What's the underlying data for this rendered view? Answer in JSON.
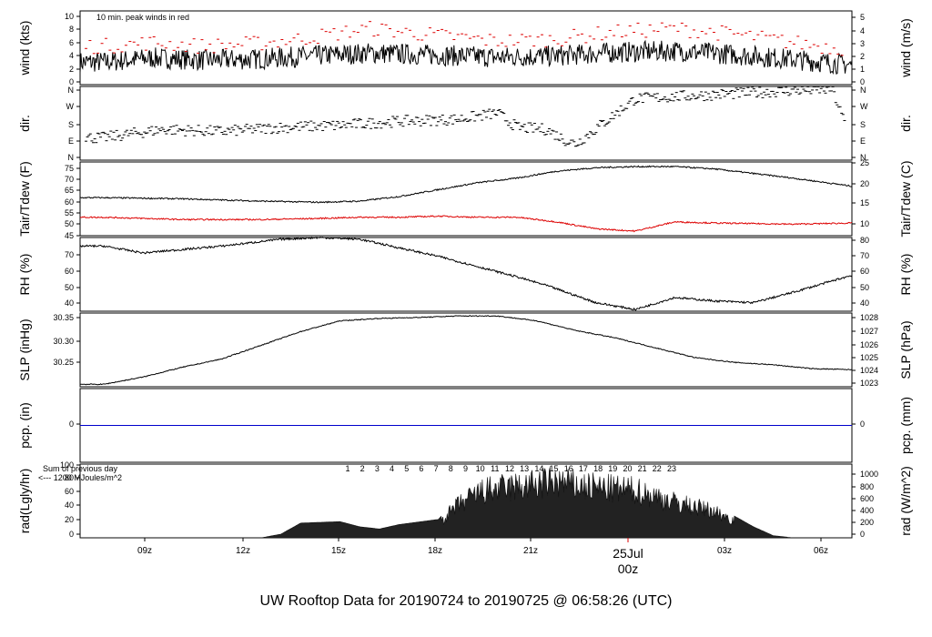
{
  "footer_title": "UW Rooftop Data for 20190724  to  20190725 @ 06:58:26  (UTC)",
  "x_ticks": [
    "09z",
    "12z",
    "15z",
    "18z",
    "21z",
    "03z",
    "06z"
  ],
  "date_marker": {
    "line1": "25Jul",
    "line2": "00z"
  },
  "wind_note": "10 min. peak winds in red",
  "rad_note_1": "Sum of previous day",
  "rad_note_2": "<--- 1200 MJoules/m^2",
  "hour_labels": [
    "1",
    "2",
    "3",
    "4",
    "5",
    "6",
    "7",
    "8",
    "9",
    "10",
    "11",
    "12",
    "13",
    "14",
    "15",
    "16",
    "17",
    "18",
    "19",
    "20",
    "21",
    "22",
    "23"
  ],
  "colors": {
    "title": "#0000cc",
    "red": "#dd0000",
    "purple": "#9900cc",
    "blue": "#0000cc",
    "black": "#000000"
  },
  "chart_data": [
    {
      "type": "line",
      "panel": "wind",
      "left_label": "wind (kts)",
      "right_label": "wind (m/s)",
      "left_ticks": [
        "0",
        "2",
        "4",
        "6",
        "8",
        "10"
      ],
      "right_ticks": [
        "0",
        "1",
        "2",
        "3",
        "4",
        "5"
      ],
      "ylim": [
        0,
        10.5
      ],
      "x_hours": [
        -7,
        -4.5,
        -2,
        0.5,
        3,
        6.5,
        10,
        13,
        16,
        19,
        22,
        25,
        28,
        31
      ],
      "series": [
        {
          "name": "wind",
          "values": [
            3.2,
            3.8,
            3.5,
            3.6,
            4.0,
            4.5,
            4.2,
            3.9,
            4.1,
            4.6,
            4.8,
            4.3,
            3.6,
            2.8
          ]
        },
        {
          "name": "10 min. peak winds",
          "values": [
            5.5,
            6.0,
            5.5,
            5.8,
            6.5,
            8.0,
            7.0,
            6.2,
            6.5,
            7.5,
            8.0,
            7.2,
            6.0,
            5.0
          ]
        }
      ]
    },
    {
      "type": "scatter",
      "panel": "dir",
      "left_label": "dir.",
      "right_label": "dir.",
      "left_ticks": [
        "N",
        "E",
        "S",
        "W",
        "N"
      ],
      "right_ticks": [
        "N",
        "E",
        "S",
        "W",
        "N"
      ],
      "ylim": [
        0,
        360
      ],
      "x_hours": [
        -7,
        -4,
        -1,
        2,
        5,
        8,
        11,
        13,
        14,
        15.5,
        16.5,
        17,
        20,
        24,
        28,
        30,
        31
      ],
      "values": [
        110,
        150,
        140,
        160,
        170,
        190,
        200,
        230,
        160,
        150,
        95,
        80,
        300,
        320,
        340,
        345,
        90
      ]
    },
    {
      "type": "line",
      "panel": "tair",
      "left_label": "Tair/Tdew (F)",
      "right_label": "Tair/Tdew (C)",
      "left_ticks": [
        "45",
        "50",
        "55",
        "60",
        "65",
        "70",
        "75"
      ],
      "right_ticks": [
        "10",
        "15",
        "20",
        "25"
      ],
      "ylim": [
        45,
        77
      ],
      "x_hours": [
        -7,
        -3,
        1,
        4,
        6,
        8,
        10,
        12,
        14,
        16,
        18,
        20,
        22,
        24,
        28,
        31
      ],
      "series": [
        {
          "name": "Tair",
          "values": [
            61.5,
            61,
            60,
            59.5,
            60,
            62,
            65,
            68,
            70,
            73,
            74.5,
            75,
            75,
            74,
            70,
            66.5
          ]
        },
        {
          "name": "Tdew",
          "values": [
            53,
            52,
            52,
            52.5,
            53,
            53,
            53.5,
            53,
            53,
            51,
            48,
            47,
            51,
            50.5,
            50,
            50.5
          ]
        }
      ]
    },
    {
      "type": "line",
      "panel": "rh",
      "left_label": "RH (%)",
      "right_label": "RH (%)",
      "left_ticks": [
        "40",
        "50",
        "60",
        "70"
      ],
      "right_ticks": [
        "40",
        "50",
        "60",
        "70",
        "80"
      ],
      "ylim": [
        37,
        80
      ],
      "x_hours": [
        -7,
        -5,
        -1,
        2,
        4,
        6,
        8,
        10,
        12,
        14,
        15.5,
        16.5,
        18,
        20,
        22,
        24,
        26,
        28,
        31
      ],
      "values": [
        75,
        71,
        75,
        79,
        80,
        79,
        74,
        69,
        63,
        57,
        52,
        48,
        42,
        38,
        45,
        43,
        42,
        48,
        58
      ]
    },
    {
      "type": "line",
      "panel": "slp",
      "left_label": "SLP (inHg)",
      "right_label": "SLP (hPa)",
      "left_ticks": [
        "30.25",
        "30.30",
        "30.35"
      ],
      "right_ticks": [
        "1023",
        "1024",
        "1025",
        "1026",
        "1027",
        "1028"
      ],
      "ylim": [
        30.205,
        30.356
      ],
      "x_hours": [
        -7,
        -5,
        -3,
        -1,
        1,
        3,
        5,
        7,
        9,
        11,
        13,
        15,
        17,
        19,
        21,
        23,
        25,
        27,
        29,
        31
      ],
      "values": [
        30.21,
        30.225,
        30.245,
        30.262,
        30.29,
        30.318,
        30.34,
        30.345,
        30.347,
        30.35,
        30.35,
        30.34,
        30.32,
        30.305,
        30.285,
        30.265,
        30.255,
        30.25,
        30.242,
        30.24
      ]
    },
    {
      "type": "line",
      "panel": "pcp",
      "left_label": "pcp. (in)",
      "right_label": "pcp. (mm)",
      "left_ticks": [
        "0"
      ],
      "right_ticks": [
        "0"
      ],
      "ylim": [
        -1,
        1
      ],
      "x_hours": [
        -8,
        31
      ],
      "values": [
        0,
        0
      ]
    },
    {
      "type": "area",
      "panel": "rad",
      "left_label": "rad(Lgly/hr)",
      "right_label": "rad (W/m^2)",
      "left_ticks": [
        "0",
        "20",
        "40",
        "60",
        "80",
        "100"
      ],
      "right_ticks": [
        "0",
        "200",
        "400",
        "600",
        "800",
        "1000"
      ],
      "ylim": [
        0,
        100
      ],
      "x_hours": [
        -7,
        -3,
        1,
        2,
        3,
        5,
        6,
        7,
        8,
        10,
        11,
        12,
        12.5,
        15,
        16,
        17,
        18,
        19,
        20,
        21,
        22,
        24,
        25,
        26,
        27,
        28
      ],
      "values": [
        0,
        0,
        0,
        5,
        20,
        22,
        15,
        12,
        18,
        25,
        55,
        75,
        80,
        90,
        95,
        88,
        85,
        82,
        80,
        70,
        60,
        45,
        30,
        15,
        3,
        0
      ]
    }
  ]
}
